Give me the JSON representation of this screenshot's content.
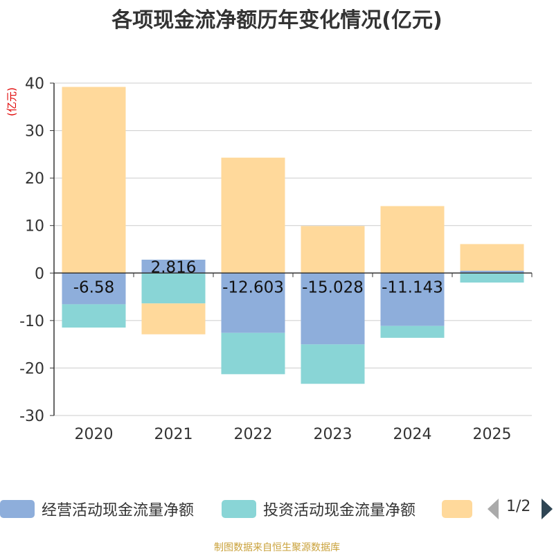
{
  "title": "各项现金流净额历年变化情况(亿元)",
  "footer": "制图数据来自恒生聚源数据库",
  "legend": {
    "items": [
      {
        "label": "经营活动现金流量净额",
        "color": "#8eaedb"
      },
      {
        "label": "投资活动现金流量净额",
        "color": "#89d5d6"
      },
      {
        "label": "",
        "color": "#ffd99b"
      }
    ],
    "page": "1/2",
    "prev_color": "#aaaaaa",
    "next_color": "#2f4554"
  },
  "chart_data": {
    "type": "bar",
    "stacked": true,
    "title": "各项现金流净额历年变化情况(亿元)",
    "ylabel": "(亿元)",
    "ylim": [
      -30,
      40
    ],
    "yticks": [
      40,
      30,
      20,
      10,
      0,
      -10,
      -20,
      -30
    ],
    "categories": [
      "2020",
      "2021",
      "2022",
      "2023",
      "2024",
      "2025"
    ],
    "series": [
      {
        "name": "经营活动现金流量净额",
        "color": "#8eaedb",
        "values": [
          -6.58,
          2.816,
          -12.603,
          -15.028,
          -11.143,
          0.5
        ],
        "labels": [
          "-6.58",
          "2.816",
          "-12.603",
          "-15.028",
          "-11.143",
          ""
        ]
      },
      {
        "name": "投资活动现金流量净额",
        "color": "#89d5d6",
        "values": [
          -4.9,
          -6.4,
          -8.7,
          -8.3,
          -2.5,
          -2.0
        ]
      },
      {
        "name": "",
        "color": "#ffd99b",
        "values": [
          39.2,
          -6.5,
          24.3,
          9.9,
          14.1,
          5.6
        ]
      }
    ]
  }
}
